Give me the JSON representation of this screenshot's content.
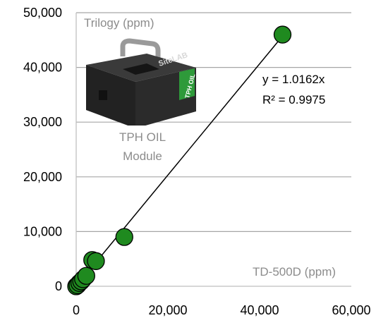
{
  "chart_data": {
    "type": "scatter",
    "title": "",
    "xlabel": "TD-500D (ppm)",
    "ylabel": "Trilogy (ppm)",
    "xlim": [
      0,
      60000
    ],
    "ylim": [
      0,
      50000
    ],
    "x_ticks": [
      "0",
      "20,000",
      "40,000",
      "60,000"
    ],
    "y_ticks": [
      "0",
      "10,000",
      "20,000",
      "30,000",
      "40,000",
      "50,000"
    ],
    "x_tick_values": [
      0,
      20000,
      40000,
      60000
    ],
    "y_tick_values": [
      0,
      10000,
      20000,
      30000,
      40000,
      50000
    ],
    "grid": "horizontal",
    "series": [
      {
        "color": "#1f8a1f",
        "points": [
          {
            "x": 0,
            "y": 0
          },
          {
            "x": 300,
            "y": 200
          },
          {
            "x": 700,
            "y": 600
          },
          {
            "x": 1100,
            "y": 900
          },
          {
            "x": 1500,
            "y": 1300
          },
          {
            "x": 2200,
            "y": 1900
          },
          {
            "x": 3500,
            "y": 4800
          },
          {
            "x": 4300,
            "y": 4600
          },
          {
            "x": 10500,
            "y": 9000
          },
          {
            "x": 45000,
            "y": 46000
          }
        ]
      }
    ],
    "trendline": {
      "slope": 1.0162,
      "x_range": [
        0,
        45300
      ],
      "equation": "y = 1.0162x",
      "r_squared": "R² = 0.9975"
    },
    "annotations": {
      "module_line1": "TPH OIL",
      "module_line2": "Module"
    }
  },
  "product_image": {
    "icon": "tph-oil-module-icon",
    "brand_text": "SiteLAB",
    "side_text": "TPH OIL",
    "colors": {
      "body": "#2b2b2b",
      "handle": "#9a9a9a",
      "label": "#2e9a3a"
    }
  }
}
